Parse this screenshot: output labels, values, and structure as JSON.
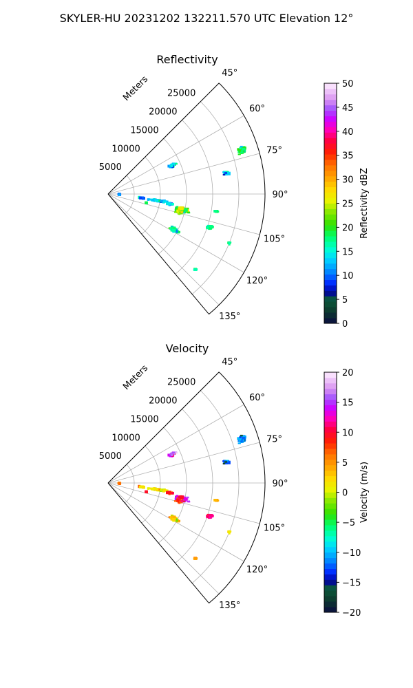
{
  "figure": {
    "suptitle": "SKYLER-HU  20231202  132211.570 UTC Elevation 12°"
  },
  "chart_data": [
    {
      "type": "scatter",
      "subtype": "polar-sector-ppi",
      "title": "Reflectivity",
      "radial_label": "Meters",
      "radial_ticks": [
        "5000",
        "10000",
        "15000",
        "20000",
        "25000"
      ],
      "radial_tick_values": [
        5000,
        10000,
        15000,
        20000,
        25000
      ],
      "rlim": [
        0,
        30000
      ],
      "angle_range": [
        45,
        140
      ],
      "angle_ticks": [
        "45°",
        "60°",
        "75°",
        "90°",
        "105°",
        "120°",
        "135°"
      ],
      "angle_tick_values": [
        45,
        60,
        75,
        90,
        105,
        120,
        135
      ],
      "grid": true,
      "colorbar": {
        "label": "Reflectivity dBZ",
        "range": [
          0,
          50
        ],
        "ticks": [
          "0",
          "5",
          "10",
          "15",
          "20",
          "25",
          "30",
          "35",
          "40",
          "45",
          "50"
        ],
        "tick_values": [
          0,
          5,
          10,
          15,
          20,
          25,
          30,
          35,
          40,
          45,
          50
        ]
      },
      "units": "dBZ",
      "echoes": [
        {
          "angle": 102.5,
          "range": 14500,
          "ang_spread": 2.6,
          "rng_spread": 1500,
          "density": 95,
          "value": 19
        },
        {
          "angle": 104.0,
          "range": 14000,
          "ang_spread": 2.0,
          "rng_spread": 900,
          "density": 40,
          "value": 24
        },
        {
          "angle": 101.0,
          "range": 14300,
          "ang_spread": 1.0,
          "rng_spread": 500,
          "density": 25,
          "value": 27
        },
        {
          "angle": 97.5,
          "range": 9500,
          "ang_spread": 1.0,
          "rng_spread": 2400,
          "density": 70,
          "value": 13
        },
        {
          "angle": 96.5,
          "range": 6500,
          "ang_spread": 1.2,
          "rng_spread": 800,
          "density": 25,
          "value": 10
        },
        {
          "angle": 92.0,
          "range": 2100,
          "ang_spread": 2.5,
          "rng_spread": 300,
          "density": 18,
          "value": 11
        },
        {
          "angle": 99.0,
          "range": 12000,
          "ang_spread": 1.5,
          "rng_spread": 800,
          "density": 15,
          "value": 14
        },
        {
          "angle": 108.0,
          "range": 20500,
          "ang_spread": 1.5,
          "rng_spread": 700,
          "density": 16,
          "value": 17
        },
        {
          "angle": 118.5,
          "range": 14500,
          "ang_spread": 1.8,
          "rng_spread": 1300,
          "density": 40,
          "value": 17
        },
        {
          "angle": 66.0,
          "range": 13500,
          "ang_spread": 1.3,
          "rng_spread": 1000,
          "density": 30,
          "value": 13
        },
        {
          "angle": 72.0,
          "range": 27000,
          "ang_spread": 2.0,
          "rng_spread": 1000,
          "density": 70,
          "value": 19
        },
        {
          "angle": 80.0,
          "range": 23000,
          "ang_spread": 1.5,
          "rng_spread": 800,
          "density": 25,
          "value": 14
        },
        {
          "angle": 99.0,
          "range": 21000,
          "ang_spread": 0.5,
          "rng_spread": 300,
          "density": 6,
          "value": 18
        },
        {
          "angle": 103.0,
          "range": 7500,
          "ang_spread": 0.5,
          "rng_spread": 200,
          "density": 5,
          "value": 18
        },
        {
          "angle": 112.0,
          "range": 25000,
          "ang_spread": 0.5,
          "rng_spread": 200,
          "density": 5,
          "value": 18
        },
        {
          "angle": 131.0,
          "range": 22000,
          "ang_spread": 0.5,
          "rng_spread": 300,
          "density": 6,
          "value": 17
        }
      ]
    },
    {
      "type": "scatter",
      "subtype": "polar-sector-ppi",
      "title": "Velocity",
      "radial_label": "Meters",
      "radial_ticks": [
        "5000",
        "10000",
        "15000",
        "20000",
        "25000"
      ],
      "radial_tick_values": [
        5000,
        10000,
        15000,
        20000,
        25000
      ],
      "rlim": [
        0,
        30000
      ],
      "angle_range": [
        45,
        140
      ],
      "angle_ticks": [
        "45°",
        "60°",
        "75°",
        "90°",
        "105°",
        "120°",
        "135°"
      ],
      "angle_tick_values": [
        45,
        60,
        75,
        90,
        105,
        120,
        135
      ],
      "grid": true,
      "colorbar": {
        "label": "Velocity (m/s)",
        "range": [
          -20,
          20
        ],
        "ticks": [
          "−20",
          "−15",
          "−10",
          "−5",
          "0",
          "5",
          "10",
          "15",
          "20"
        ],
        "tick_values": [
          -20,
          -15,
          -10,
          -5,
          0,
          5,
          10,
          15,
          20
        ]
      },
      "units": "m/s",
      "echoes": [
        {
          "angle": 102.5,
          "range": 14500,
          "ang_spread": 2.6,
          "rng_spread": 1500,
          "density": 95,
          "value": 14
        },
        {
          "angle": 104.0,
          "range": 14000,
          "ang_spread": 2.0,
          "rng_spread": 900,
          "density": 40,
          "value": 8
        },
        {
          "angle": 101.0,
          "range": 14300,
          "ang_spread": 1.0,
          "rng_spread": 500,
          "density": 25,
          "value": 10
        },
        {
          "angle": 97.5,
          "range": 9500,
          "ang_spread": 1.0,
          "rng_spread": 2400,
          "density": 70,
          "value": 1
        },
        {
          "angle": 96.5,
          "range": 6500,
          "ang_spread": 1.2,
          "rng_spread": 800,
          "density": 25,
          "value": 2
        },
        {
          "angle": 92.0,
          "range": 2100,
          "ang_spread": 2.5,
          "rng_spread": 300,
          "density": 18,
          "value": 6
        },
        {
          "angle": 99.0,
          "range": 12000,
          "ang_spread": 1.5,
          "rng_spread": 800,
          "density": 15,
          "value": 9
        },
        {
          "angle": 108.0,
          "range": 20500,
          "ang_spread": 1.5,
          "rng_spread": 700,
          "density": 16,
          "value": 11
        },
        {
          "angle": 118.5,
          "range": 14500,
          "ang_spread": 1.8,
          "rng_spread": 1300,
          "density": 40,
          "value": 3
        },
        {
          "angle": 66.0,
          "range": 13500,
          "ang_spread": 1.3,
          "rng_spread": 1000,
          "density": 30,
          "value": 15
        },
        {
          "angle": 72.0,
          "range": 27000,
          "ang_spread": 2.0,
          "rng_spread": 1000,
          "density": 70,
          "value": -11
        },
        {
          "angle": 80.0,
          "range": 23000,
          "ang_spread": 1.5,
          "rng_spread": 800,
          "density": 25,
          "value": -12
        },
        {
          "angle": 99.0,
          "range": 21000,
          "ang_spread": 0.5,
          "rng_spread": 300,
          "density": 6,
          "value": 4
        },
        {
          "angle": 103.0,
          "range": 7500,
          "ang_spread": 0.5,
          "rng_spread": 200,
          "density": 5,
          "value": 9
        },
        {
          "angle": 112.0,
          "range": 25000,
          "ang_spread": 0.5,
          "rng_spread": 200,
          "density": 5,
          "value": 2
        },
        {
          "angle": 131.0,
          "range": 22000,
          "ang_spread": 0.5,
          "rng_spread": 300,
          "density": 6,
          "value": 5
        }
      ]
    }
  ],
  "colormap_stops": [
    {
      "t": 0.0,
      "color": "#0b0b40"
    },
    {
      "t": 0.05,
      "color": "#0d3a2e"
    },
    {
      "t": 0.1,
      "color": "#0b5a3a"
    },
    {
      "t": 0.13,
      "color": "#0000a0"
    },
    {
      "t": 0.17,
      "color": "#0030ff"
    },
    {
      "t": 0.22,
      "color": "#0090ff"
    },
    {
      "t": 0.27,
      "color": "#00d8ff"
    },
    {
      "t": 0.31,
      "color": "#00ffd0"
    },
    {
      "t": 0.36,
      "color": "#00ff70"
    },
    {
      "t": 0.41,
      "color": "#30e000"
    },
    {
      "t": 0.46,
      "color": "#80e800"
    },
    {
      "t": 0.51,
      "color": "#e8f400"
    },
    {
      "t": 0.56,
      "color": "#ffd800"
    },
    {
      "t": 0.61,
      "color": "#ffa000"
    },
    {
      "t": 0.66,
      "color": "#ff7000"
    },
    {
      "t": 0.71,
      "color": "#ff2000"
    },
    {
      "t": 0.76,
      "color": "#ff0040"
    },
    {
      "t": 0.81,
      "color": "#ff00c0"
    },
    {
      "t": 0.85,
      "color": "#d000ff"
    },
    {
      "t": 0.89,
      "color": "#a050ff"
    },
    {
      "t": 0.93,
      "color": "#d890f0"
    },
    {
      "t": 1.0,
      "color": "#fff0ff"
    }
  ]
}
